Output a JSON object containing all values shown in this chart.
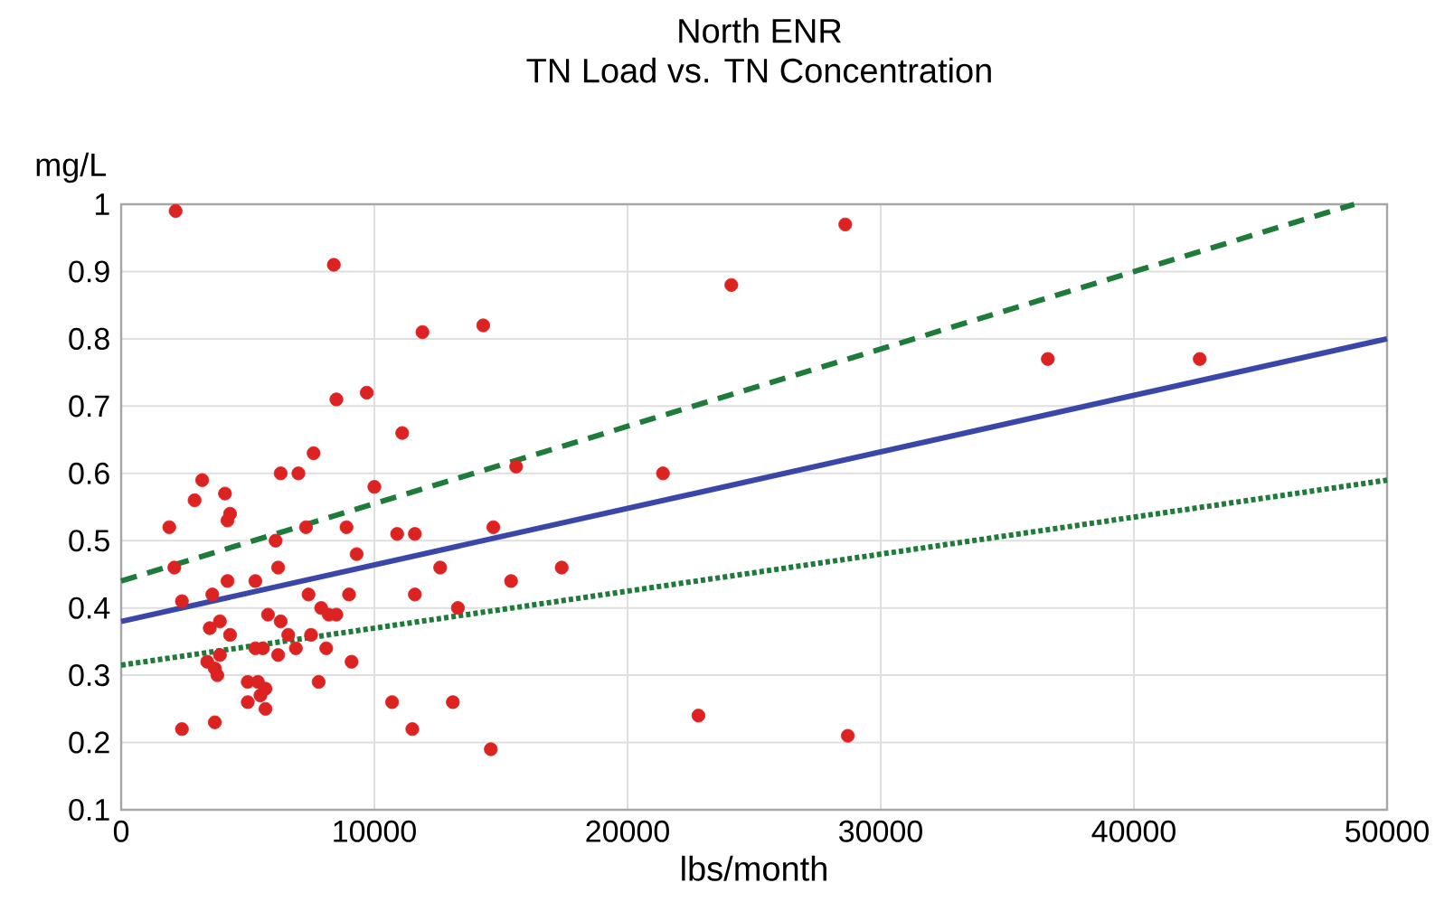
{
  "chart_data": {
    "type": "scatter",
    "title": "North ENR",
    "subtitle": "TN Load vs. TN Concentration",
    "xlabel": "lbs/month",
    "ylabel": "mg/L",
    "xlim": [
      0,
      50000
    ],
    "xticks": [
      0,
      10000,
      20000,
      30000,
      40000,
      50000
    ],
    "ylim": [
      0.1,
      1
    ],
    "yticks": [
      0.1,
      0.2,
      0.3,
      0.4,
      0.5,
      0.6,
      0.7,
      0.8,
      0.9,
      1
    ],
    "grid": true,
    "series": [
      {
        "color": "#dd2222",
        "marker": "circle",
        "x": [
          2150,
          8400,
          11900,
          8500,
          9700,
          11100,
          7600,
          6300,
          7000,
          3200,
          4100,
          10000,
          2900,
          4300,
          4200,
          1900,
          7300,
          8900,
          10900,
          11600,
          6100,
          2100,
          6200,
          9300,
          12600,
          4200,
          5300,
          3600,
          2400,
          7400,
          9000,
          11600,
          13300,
          3500,
          3900,
          4300,
          5800,
          6300,
          7900,
          8200,
          8500,
          6600,
          7500,
          5300,
          5600,
          6200,
          6900,
          8100,
          9100,
          3400,
          3700,
          3800,
          3900,
          5000,
          5400,
          5700,
          7800,
          5000,
          5700,
          5500,
          10700,
          13100,
          2400,
          3700,
          11500,
          14300,
          15600,
          14700,
          15400,
          17400,
          21400,
          14600,
          22800,
          28600,
          24100,
          36600,
          42600,
          28700
        ],
        "values": [
          0.99,
          0.91,
          0.81,
          0.71,
          0.72,
          0.66,
          0.63,
          0.6,
          0.6,
          0.59,
          0.57,
          0.58,
          0.56,
          0.54,
          0.53,
          0.52,
          0.52,
          0.52,
          0.51,
          0.51,
          0.5,
          0.46,
          0.46,
          0.48,
          0.46,
          0.44,
          0.44,
          0.42,
          0.41,
          0.42,
          0.42,
          0.42,
          0.4,
          0.37,
          0.38,
          0.36,
          0.39,
          0.38,
          0.4,
          0.39,
          0.39,
          0.36,
          0.36,
          0.34,
          0.34,
          0.33,
          0.34,
          0.34,
          0.32,
          0.32,
          0.31,
          0.3,
          0.33,
          0.29,
          0.29,
          0.28,
          0.29,
          0.26,
          0.25,
          0.27,
          0.26,
          0.26,
          0.22,
          0.23,
          0.22,
          0.82,
          0.61,
          0.52,
          0.44,
          0.46,
          0.6,
          0.19,
          0.24,
          0.97,
          0.88,
          0.77,
          0.77,
          0.21
        ]
      },
      {
        "type": "line",
        "color": "#3a47a8",
        "line_style": "solid",
        "x": [
          0,
          50000
        ],
        "values": [
          0.38,
          0.8
        ]
      },
      {
        "type": "line",
        "color": "#1e7b3a",
        "line_style": "dashed",
        "x": [
          0,
          48700
        ],
        "values": [
          0.44,
          1.0
        ]
      },
      {
        "type": "line",
        "color": "#1e7b3a",
        "line_style": "dotted",
        "x": [
          0,
          50000
        ],
        "values": [
          0.315,
          0.59
        ]
      }
    ]
  }
}
